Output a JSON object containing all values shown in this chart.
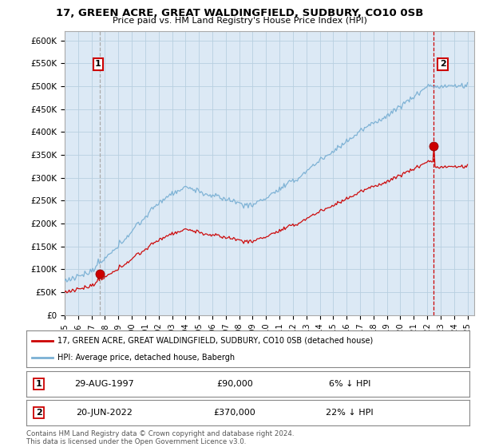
{
  "title": "17, GREEN ACRE, GREAT WALDINGFIELD, SUDBURY, CO10 0SB",
  "subtitle": "Price paid vs. HM Land Registry's House Price Index (HPI)",
  "legend_line1": "17, GREEN ACRE, GREAT WALDINGFIELD, SUDBURY, CO10 0SB (detached house)",
  "legend_line2": "HPI: Average price, detached house, Babergh",
  "transaction1_date": "29-AUG-1997",
  "transaction1_price": "£90,000",
  "transaction1_hpi": "6% ↓ HPI",
  "transaction2_date": "20-JUN-2022",
  "transaction2_price": "£370,000",
  "transaction2_hpi": "22% ↓ HPI",
  "footer": "Contains HM Land Registry data © Crown copyright and database right 2024.\nThis data is licensed under the Open Government Licence v3.0.",
  "price_color": "#cc0000",
  "hpi_color": "#7ab0d4",
  "vline1_color": "#aaaaaa",
  "vline2_color": "#cc0000",
  "plot_bg_color": "#dce9f5",
  "ylim": [
    0,
    620000
  ],
  "yticks": [
    0,
    50000,
    100000,
    150000,
    200000,
    250000,
    300000,
    350000,
    400000,
    450000,
    500000,
    550000,
    600000
  ],
  "ytick_labels": [
    "£0",
    "£50K",
    "£100K",
    "£150K",
    "£200K",
    "£250K",
    "£300K",
    "£350K",
    "£400K",
    "£450K",
    "£500K",
    "£550K",
    "£600K"
  ],
  "xlim_start": 1995.0,
  "xlim_end": 2025.5,
  "background_color": "#ffffff",
  "grid_color": "#b8cfe0",
  "transaction1_x": 1997.64,
  "transaction1_y": 90000,
  "transaction2_x": 2022.46,
  "transaction2_y": 370000,
  "marker_size": 7
}
